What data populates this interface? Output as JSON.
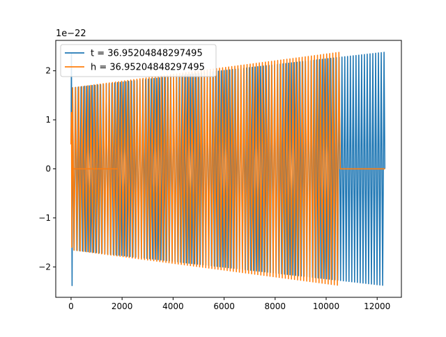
{
  "chart_data": {
    "type": "line",
    "title": "",
    "xlabel": "",
    "ylabel": "",
    "y_scale_label": "1e−22",
    "xlim": [
      -600,
      12950
    ],
    "ylim": [
      -2.62,
      2.62
    ],
    "x_ticks": [
      0,
      2000,
      4000,
      6000,
      8000,
      10000,
      12000
    ],
    "x_tick_labels": [
      "0",
      "2000",
      "4000",
      "6000",
      "8000",
      "10000",
      "12000"
    ],
    "y_ticks": [
      -2,
      -1,
      0,
      1,
      2
    ],
    "y_tick_labels": [
      "−2",
      "−1",
      "0",
      "1",
      "2"
    ],
    "grid": false,
    "legend_position": "upper-left",
    "series": [
      {
        "name": "t = 36.95204848297495",
        "color": "#1f77b4",
        "description_values": {
          "x_start": 0,
          "x_end": 12300,
          "amplitude_start": 1.65,
          "amplitude_end": 2.38,
          "initial_spike": 2.35,
          "initial_trough": -2.38,
          "oscillation_period": 110,
          "flat_segment": [
            [
              60,
              1820
            ]
          ]
        }
      },
      {
        "name": "h = 36.95204848297495",
        "color": "#ff7f0e",
        "description_values": {
          "x_start": 0,
          "x_end": 10550,
          "amplitude_start": 1.65,
          "amplitude_end": 2.38,
          "oscillation_period": 120,
          "flat_after": 10550,
          "flat_until": 12300,
          "flat_segment": [
            [
              60,
              1820
            ],
            [
              10550,
              12300
            ]
          ]
        }
      }
    ]
  }
}
